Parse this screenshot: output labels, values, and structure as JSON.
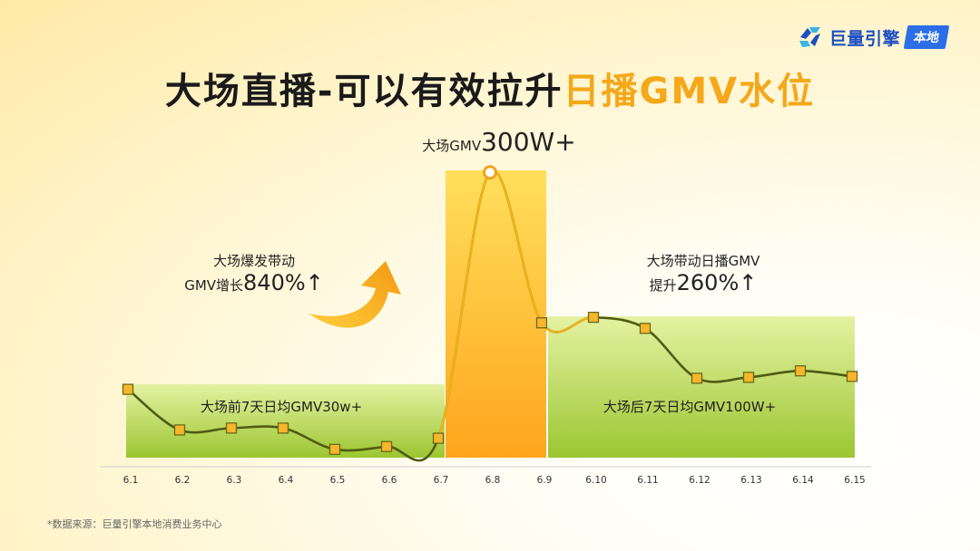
{
  "brand": {
    "name": "巨量引擎",
    "badge": "本地",
    "icon": "brand-logo-icon"
  },
  "title": {
    "main": "大场直播-可以有效拉升",
    "highlight": "日播GMV水位"
  },
  "annotations": {
    "peak_prefix": "大场GMV",
    "peak_value": "300W+",
    "left_note_line1": "大场爆发带动",
    "left_note_prefix": "GMV增长",
    "left_note_value": "840%↑",
    "right_note_line1": "大场带动日播GMV",
    "right_note_prefix": "提升",
    "right_note_value": "260%↑",
    "before_box": "大场前7天日均GMV30w+",
    "after_box": "大场后7天日均GMV100W+"
  },
  "footer": "*数据来源：巨量引擎本地消费业务中心",
  "colors": {
    "accent": "#f4a81a",
    "green": "#a6cd3a",
    "line": "#4f5b12",
    "marker": "#f7b62b"
  },
  "chart_data": {
    "type": "line",
    "categories": [
      "6.1",
      "6.2",
      "6.3",
      "6.4",
      "6.5",
      "6.6",
      "6.7",
      "6.8",
      "6.9",
      "6.10",
      "6.11",
      "6.12",
      "6.13",
      "6.14",
      "6.15"
    ],
    "series": [
      {
        "values": [
          75,
          31,
          33,
          33,
          10,
          13,
          22,
          310,
          147,
          153,
          141,
          87,
          88,
          95,
          89
        ]
      }
    ],
    "ylim": [
      0,
      320
    ]
  }
}
